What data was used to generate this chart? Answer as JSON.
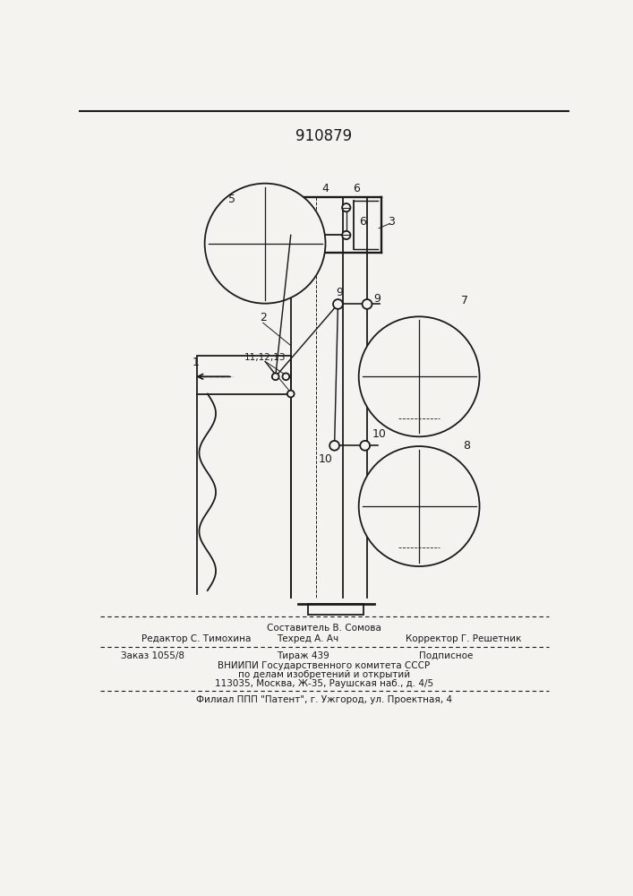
{
  "patent_number": "910879",
  "bg_color": "#f5f3ef",
  "line_color": "#1a1a1a",
  "footer": {
    "editor": "Редактор С. Тимохина",
    "compositor": "Составитель В. Сомова",
    "techred": "Техред А. Ач",
    "corrector": "Корректор Г. Решетник",
    "order": "Заказ 1055/8",
    "tirazh": "Тираж 439",
    "podpisnoe": "Подписное",
    "vnipi1": "ВНИИПИ Государственного комитета СССР",
    "vnipi2": "по делам изобретений и открытий",
    "vnipi3": "113035, Москва, Ж-35, Раушская наб., д. 4/5",
    "filial": "Филиал ППП \"Патент\", г. Ужгород, ул. Проектная, 4"
  }
}
